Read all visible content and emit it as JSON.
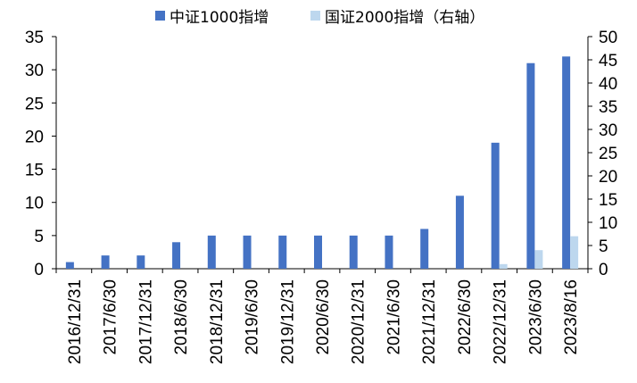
{
  "legend": {
    "series1": "中证1000指增",
    "series2": "国证2000指增（右轴）"
  },
  "colors": {
    "series1": "#4472C4",
    "series2": "#BDD7EE",
    "axis": "#000000"
  },
  "chart_data": {
    "type": "bar",
    "title": "",
    "xlabel": "",
    "ylabel": "",
    "legend_position": "top",
    "grid": false,
    "categories": [
      "2016/12/31",
      "2017/6/30",
      "2017/12/31",
      "2018/6/30",
      "2018/12/31",
      "2019/6/30",
      "2019/12/31",
      "2020/6/30",
      "2020/12/31",
      "2021/6/30",
      "2021/12/31",
      "2022/6/30",
      "2022/12/31",
      "2023/6/30",
      "2023/8/16"
    ],
    "series": [
      {
        "name": "中证1000指增",
        "axis": "left",
        "values": [
          1,
          2,
          2,
          4,
          5,
          5,
          5,
          5,
          5,
          5,
          6,
          11,
          19,
          31,
          32
        ]
      },
      {
        "name": "国证2000指增（右轴）",
        "axis": "right",
        "values": [
          0,
          0,
          0,
          0,
          0,
          0,
          0,
          0,
          0,
          0,
          0,
          0,
          1,
          4,
          7
        ]
      }
    ],
    "ylim_left": [
      0,
      35
    ],
    "yticks_left": [
      0,
      5,
      10,
      15,
      20,
      25,
      30,
      35
    ],
    "ylim_right": [
      0,
      50
    ],
    "yticks_right": [
      0,
      5,
      10,
      15,
      20,
      25,
      30,
      35,
      40,
      45,
      50
    ]
  }
}
